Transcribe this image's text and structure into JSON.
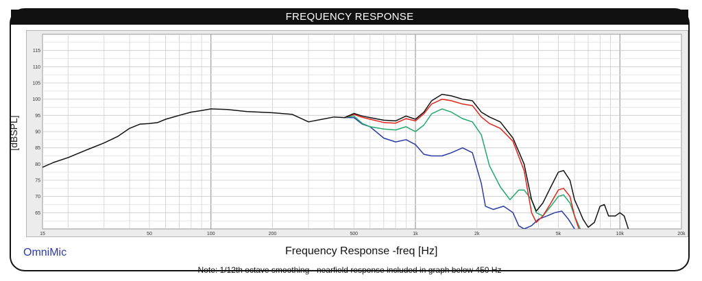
{
  "header": {
    "title": "FREQUENCY RESPONSE"
  },
  "footer": {
    "brand": "OmniMic",
    "note": "Note: 1/12th octave smoothing - nearfield response included in graph below 450 Hz"
  },
  "chart_data": {
    "type": "line",
    "xlabel": "Frequency Response -freq [Hz]",
    "ylabel": "[dBSPL]",
    "xscale": "log",
    "xlim": [
      15,
      20000
    ],
    "ylim": [
      60,
      120
    ],
    "x_ticks": [
      {
        "v": 15,
        "label": "15"
      },
      {
        "v": 50,
        "label": "50"
      },
      {
        "v": 100,
        "label": "100"
      },
      {
        "v": 200,
        "label": "200"
      },
      {
        "v": 500,
        "label": "500"
      },
      {
        "v": 1000,
        "label": "1k"
      },
      {
        "v": 2000,
        "label": "2k"
      },
      {
        "v": 5000,
        "label": "5k"
      },
      {
        "v": 10000,
        "label": "10k"
      },
      {
        "v": 20000,
        "label": "20k"
      }
    ],
    "y_ticks": [
      65,
      70,
      75,
      80,
      85,
      90,
      95,
      100,
      105,
      110,
      115
    ],
    "grid": true,
    "series": [
      {
        "color": "#111111",
        "points": [
          [
            15,
            79
          ],
          [
            17,
            80.5
          ],
          [
            20,
            82
          ],
          [
            25,
            84.5
          ],
          [
            30,
            86.5
          ],
          [
            35,
            88.5
          ],
          [
            40,
            91
          ],
          [
            45,
            92.3
          ],
          [
            50,
            92.5
          ],
          [
            55,
            92.8
          ],
          [
            60,
            93.8
          ],
          [
            70,
            95
          ],
          [
            80,
            96
          ],
          [
            90,
            96.5
          ],
          [
            100,
            97
          ],
          [
            120,
            96.8
          ],
          [
            150,
            96.2
          ],
          [
            200,
            95.8
          ],
          [
            250,
            95.3
          ],
          [
            300,
            93
          ],
          [
            350,
            93.8
          ],
          [
            400,
            94.5
          ],
          [
            450,
            94.3
          ],
          [
            500,
            95.6
          ],
          [
            550,
            94.8
          ],
          [
            600,
            94.3
          ],
          [
            700,
            93.5
          ],
          [
            800,
            93.3
          ],
          [
            900,
            94.8
          ],
          [
            1000,
            93.8
          ],
          [
            1100,
            96
          ],
          [
            1200,
            99.5
          ],
          [
            1350,
            101.5
          ],
          [
            1500,
            101
          ],
          [
            1700,
            100
          ],
          [
            1900,
            99.5
          ],
          [
            2100,
            96
          ],
          [
            2300,
            94.5
          ],
          [
            2600,
            93
          ],
          [
            3000,
            88
          ],
          [
            3400,
            80
          ],
          [
            3700,
            69
          ],
          [
            3900,
            65.5
          ],
          [
            4200,
            68
          ],
          [
            4600,
            73
          ],
          [
            5000,
            77.5
          ],
          [
            5300,
            78
          ],
          [
            5700,
            75
          ],
          [
            6000,
            69
          ],
          [
            6300,
            66
          ],
          [
            6600,
            63
          ],
          [
            7000,
            60.5
          ],
          [
            7500,
            62
          ],
          [
            8000,
            67
          ],
          [
            8400,
            67.5
          ],
          [
            8800,
            64
          ],
          [
            9500,
            64
          ],
          [
            10000,
            65
          ],
          [
            10500,
            64
          ],
          [
            11000,
            60
          ]
        ]
      },
      {
        "color": "#e2231a",
        "points": [
          [
            450,
            94.3
          ],
          [
            500,
            95.3
          ],
          [
            550,
            94.4
          ],
          [
            600,
            93.8
          ],
          [
            700,
            92.8
          ],
          [
            800,
            92.6
          ],
          [
            900,
            94
          ],
          [
            1000,
            93.3
          ],
          [
            1100,
            95.5
          ],
          [
            1200,
            98.5
          ],
          [
            1350,
            100
          ],
          [
            1500,
            99.5
          ],
          [
            1700,
            98.5
          ],
          [
            1900,
            98
          ],
          [
            2100,
            94.5
          ],
          [
            2300,
            92.5
          ],
          [
            2600,
            91
          ],
          [
            3000,
            87
          ],
          [
            3400,
            78
          ],
          [
            3700,
            65
          ],
          [
            3900,
            62
          ],
          [
            4200,
            64
          ],
          [
            4600,
            68
          ],
          [
            5000,
            72
          ],
          [
            5300,
            72.5
          ],
          [
            5700,
            70
          ],
          [
            6000,
            64
          ],
          [
            6300,
            60
          ]
        ]
      },
      {
        "color": "#1fa86b",
        "points": [
          [
            450,
            94.3
          ],
          [
            500,
            94.8
          ],
          [
            550,
            92.5
          ],
          [
            600,
            91.5
          ],
          [
            700,
            90.8
          ],
          [
            800,
            90.5
          ],
          [
            900,
            91.5
          ],
          [
            1000,
            90
          ],
          [
            1100,
            92
          ],
          [
            1200,
            95.5
          ],
          [
            1350,
            97
          ],
          [
            1500,
            96
          ],
          [
            1700,
            94
          ],
          [
            1900,
            93
          ],
          [
            2100,
            89
          ],
          [
            2300,
            79.5
          ],
          [
            2600,
            73
          ],
          [
            2900,
            69
          ],
          [
            3200,
            72
          ],
          [
            3400,
            72
          ],
          [
            3700,
            69
          ],
          [
            3900,
            65
          ],
          [
            4200,
            64
          ],
          [
            4600,
            67
          ],
          [
            5000,
            70
          ],
          [
            5300,
            70.5
          ],
          [
            5700,
            68
          ],
          [
            6000,
            64
          ],
          [
            6400,
            60
          ]
        ]
      },
      {
        "color": "#2a3aa3",
        "points": [
          [
            450,
            94.3
          ],
          [
            500,
            94.3
          ],
          [
            550,
            92.3
          ],
          [
            600,
            91.5
          ],
          [
            700,
            88
          ],
          [
            800,
            86.8
          ],
          [
            900,
            87.5
          ],
          [
            1000,
            86
          ],
          [
            1100,
            83
          ],
          [
            1200,
            82.5
          ],
          [
            1350,
            82.5
          ],
          [
            1500,
            83.5
          ],
          [
            1700,
            85
          ],
          [
            1900,
            83.5
          ],
          [
            2100,
            74
          ],
          [
            2200,
            67
          ],
          [
            2400,
            66
          ],
          [
            2700,
            67
          ],
          [
            3000,
            65
          ],
          [
            3200,
            61
          ],
          [
            3400,
            60
          ],
          [
            3700,
            61
          ],
          [
            4000,
            63
          ],
          [
            4400,
            64
          ],
          [
            4800,
            65
          ],
          [
            5200,
            65.5
          ],
          [
            5600,
            63
          ],
          [
            6000,
            60
          ]
        ]
      }
    ]
  }
}
